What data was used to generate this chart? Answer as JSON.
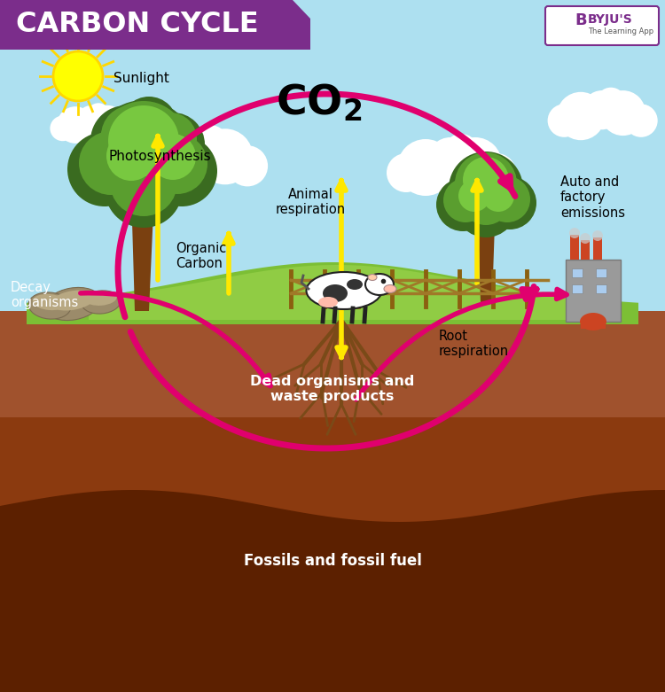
{
  "title": "CARBON CYCLE",
  "title_bg_color": "#7B2D8B",
  "title_text_color": "#FFFFFF",
  "sky_color": "#ADE0F0",
  "ground_upper_color": "#A0522D",
  "ground_mid_color": "#8B3A0F",
  "ground_deep_color": "#5C2000",
  "grass_color": "#7CBF35",
  "grass_light_color": "#90CC44",
  "arrow_color": "#E0006E",
  "yellow_color": "#FFE800",
  "sun_color": "#FFFF00",
  "white": "#FFFFFF",
  "labels": {
    "sunlight": "Sunlight",
    "photosynthesis": "Photosynthesis",
    "organic_carbon": "Organic\nCarbon",
    "animal_respiration": "Animal\nrespiration",
    "root_respiration": "Root\nrespiration",
    "auto_factory": "Auto and\nfactory\nemissions",
    "decay_organisms": "Decay\norganisms",
    "dead_organisms": "Dead organisms and\nwaste products",
    "fossils": "Fossils and fossil fuel"
  },
  "byju_color": "#7B2D8B"
}
